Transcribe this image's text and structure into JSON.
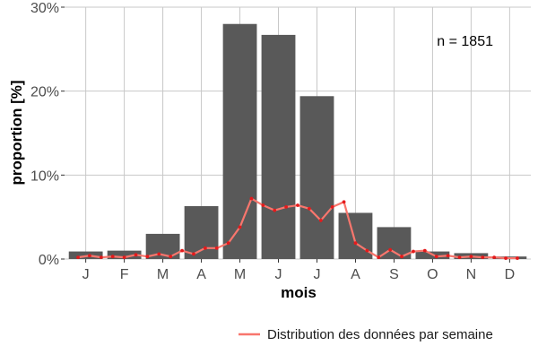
{
  "chart_data": {
    "type": "bar",
    "categories": [
      "J",
      "F",
      "M",
      "A",
      "M",
      "J",
      "J",
      "A",
      "S",
      "O",
      "N",
      "D"
    ],
    "values": [
      0.9,
      1.0,
      3.0,
      6.3,
      28.0,
      26.7,
      19.4,
      5.5,
      3.8,
      0.9,
      0.7,
      0.3
    ],
    "value_unit": "%",
    "xlabel": "mois",
    "ylabel": "proportion [%]",
    "ylim": [
      0,
      30
    ],
    "yticks": [
      0,
      10,
      20,
      30
    ],
    "ytick_labels": [
      "0%",
      "10%",
      "20%",
      "30%"
    ],
    "annotation": "n = 1851",
    "grid": true,
    "legend_position": "bottom-right",
    "bar_color": "#595959",
    "weekly_series": {
      "name": "Distribution des données par semaine",
      "color": "#f8766d",
      "marker_color": "#e41a1c",
      "x": [
        0.8,
        1.1,
        1.4,
        1.7,
        2.0,
        2.3,
        2.6,
        2.9,
        3.2,
        3.5,
        3.8,
        4.1,
        4.4,
        4.7,
        5.0,
        5.3,
        5.6,
        5.9,
        6.2,
        6.5,
        6.8,
        7.1,
        7.4,
        7.7,
        8.0,
        8.3,
        8.6,
        8.9,
        9.2,
        9.5,
        9.8,
        10.1,
        10.4,
        10.7,
        11.0,
        11.3,
        11.6,
        11.9,
        12.2
      ],
      "values": [
        0.2,
        0.4,
        0.2,
        0.3,
        0.2,
        0.5,
        0.3,
        0.6,
        0.3,
        1.0,
        0.6,
        1.3,
        1.3,
        1.9,
        3.8,
        7.2,
        6.4,
        5.8,
        6.2,
        6.4,
        6.0,
        4.6,
        6.2,
        6.8,
        1.9,
        1.0,
        0.2,
        1.1,
        0.3,
        0.9,
        1.0,
        0.3,
        0.4,
        0.2,
        0.3,
        0.2,
        0.2,
        0.1,
        0.1
      ]
    }
  }
}
